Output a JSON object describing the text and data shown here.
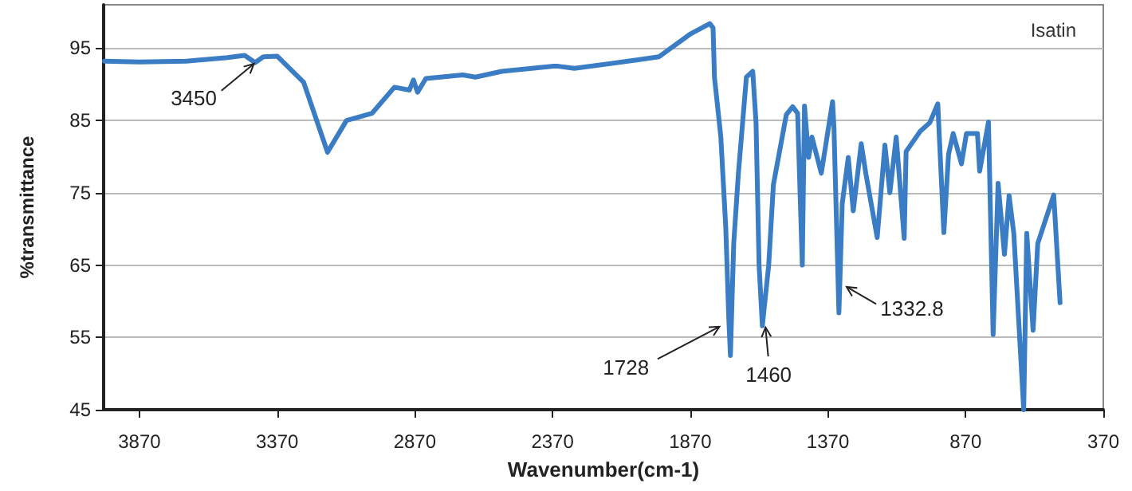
{
  "chart_data": {
    "type": "line",
    "title": "Isatin",
    "xlabel": "Wavenumber(cm-1)",
    "ylabel": "%transmittance",
    "xlim": [
      4000,
      370
    ],
    "xticks": [
      3870,
      3370,
      2870,
      2370,
      1870,
      1370,
      870,
      370
    ],
    "ylim": [
      45,
      101
    ],
    "yticks": [
      45,
      55,
      65,
      75,
      85,
      95
    ],
    "grid": "y",
    "marker": "none",
    "line_style": "solid",
    "annotations": [
      {
        "text": "3450",
        "x": 3450,
        "y": 93
      },
      {
        "text": "1728",
        "x": 1759,
        "y": 56.6
      },
      {
        "text": "1460",
        "x": 1597,
        "y": 56.6
      },
      {
        "text": "1332.8",
        "x": 1307,
        "y": 62.1
      }
    ],
    "series": [
      {
        "color": "#3a7dc4",
        "x": [
          3997,
          3870,
          3700,
          3550,
          3488,
          3450,
          3420,
          3370,
          3274,
          3187,
          3118,
          3025,
          2944,
          2890,
          2875,
          2860,
          2830,
          2696,
          2650,
          2554,
          2366,
          2349,
          2291,
          2059,
          1984,
          1868,
          1799,
          1787,
          1782,
          1759,
          1741,
          1730,
          1724,
          1712,
          1695,
          1666,
          1643,
          1631,
          1620,
          1608,
          1585,
          1568,
          1521,
          1498,
          1480,
          1463,
          1455,
          1440,
          1428,
          1394,
          1353,
          1348,
          1330,
          1318,
          1296,
          1278,
          1249,
          1232,
          1191,
          1163,
          1145,
          1122,
          1093,
          1086,
          1035,
          1000,
          971,
          949,
          932,
          915,
          885,
          867,
          827,
          819,
          787,
          770,
          752,
          729,
          712,
          695,
          659,
          648,
          625,
          608,
          556,
          550,
          527
        ],
        "values": [
          93.2,
          93.1,
          93.2,
          93.7,
          94,
          93,
          93.8,
          93.9,
          90.3,
          80.6,
          85,
          86,
          89.6,
          89.2,
          90.6,
          88.9,
          90.8,
          91.3,
          91,
          91.8,
          92.5,
          92.5,
          92.2,
          93.4,
          93.8,
          97,
          98.4,
          97.8,
          91,
          82.8,
          70.3,
          57.7,
          52.5,
          68,
          77.7,
          91,
          91.8,
          84.7,
          65,
          56.6,
          65,
          76.1,
          85.8,
          86.9,
          86,
          65,
          87,
          79.9,
          82.7,
          77.7,
          87.6,
          84,
          58.4,
          73.5,
          79.9,
          72.5,
          81.8,
          77.6,
          68.8,
          81.6,
          75,
          82.7,
          68.7,
          80.7,
          83.5,
          84.7,
          87.3,
          69.5,
          80.3,
          83.2,
          79,
          83.2,
          83.2,
          78,
          84.8,
          55.4,
          76.3,
          66.5,
          74.6,
          69.4,
          45,
          69.4,
          56,
          68,
          74,
          74.7,
          59.8
        ]
      }
    ]
  }
}
